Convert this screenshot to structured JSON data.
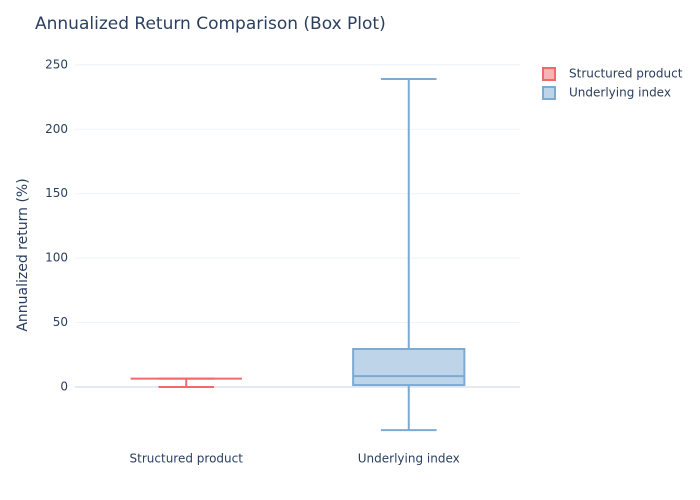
{
  "chart_data": {
    "type": "box",
    "title": "Annualized Return Comparison (Box Plot)",
    "y_label": "Annualized return (%)",
    "categories": [
      "Structured product",
      "Underlying index"
    ],
    "series": [
      {
        "name": "Structured product",
        "color": "#ef6a6a",
        "min": 0,
        "q1": 6.5,
        "median": 6.5,
        "q3": 6.5,
        "max": 6.5
      },
      {
        "name": "Underlying index",
        "color": "#7ea9d3",
        "min": -33.5,
        "q1": 1.5,
        "median": 8.5,
        "q3": 29.5,
        "max": 239
      }
    ],
    "ylim": [
      -45,
      260
    ],
    "yticks": [
      0,
      50,
      100,
      150,
      200,
      250
    ],
    "grid": true
  }
}
